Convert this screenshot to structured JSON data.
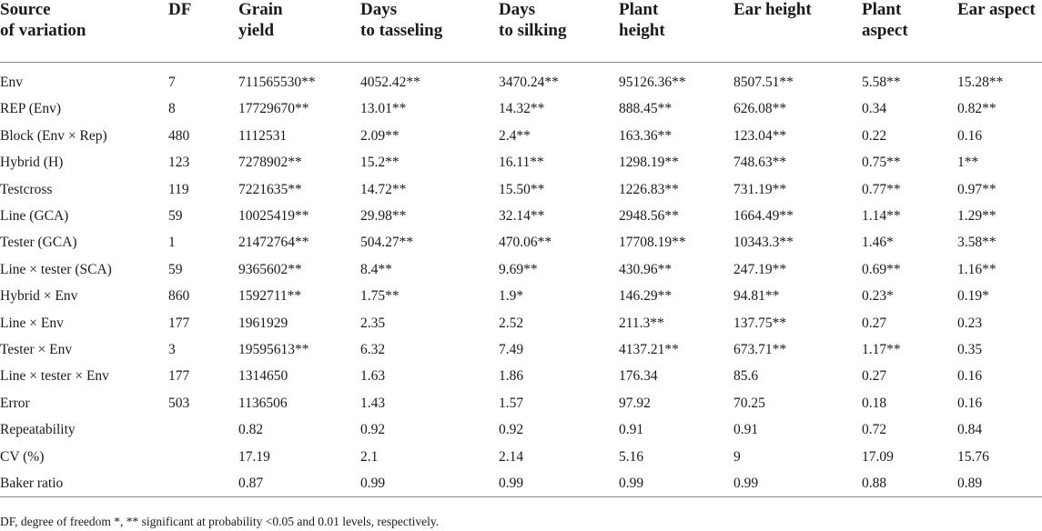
{
  "table": {
    "headers": [
      "Source\nof variation",
      "DF",
      "Grain\nyield",
      "Days\nto tasseling",
      "Days\nto silking",
      "Plant\nheight",
      "Ear height",
      "Plant\naspect",
      "Ear aspect"
    ],
    "rows": [
      [
        "Env",
        "7",
        "711565530**",
        "4052.42**",
        "3470.24**",
        "95126.36**",
        "8507.51**",
        "5.58**",
        "15.28**"
      ],
      [
        "REP (Env)",
        "8",
        "17729670**",
        "13.01**",
        "14.32**",
        "888.45**",
        "626.08**",
        "0.34",
        "0.82**"
      ],
      [
        "Block (Env × Rep)",
        "480",
        "1112531",
        "2.09**",
        "2.4**",
        "163.36**",
        "123.04**",
        "0.22",
        "0.16"
      ],
      [
        "Hybrid (H)",
        "123",
        "7278902**",
        "15.2**",
        "16.11**",
        "1298.19**",
        "748.63**",
        "0.75**",
        "1**"
      ],
      [
        "Testcross",
        "119",
        "7221635**",
        "14.72**",
        "15.50**",
        "1226.83**",
        "731.19**",
        "0.77**",
        "0.97**"
      ],
      [
        "Line (GCA)",
        "59",
        "10025419**",
        "29.98**",
        "32.14**",
        "2948.56**",
        "1664.49**",
        "1.14**",
        "1.29**"
      ],
      [
        "Tester (GCA)",
        "1",
        "21472764**",
        "504.27**",
        "470.06**",
        "17708.19**",
        "10343.3**",
        "1.46*",
        "3.58**"
      ],
      [
        "Line × tester (SCA)",
        "59",
        "9365602**",
        "8.4**",
        "9.69**",
        "430.96**",
        "247.19**",
        "0.69**",
        "1.16**"
      ],
      [
        "Hybrid × Env",
        "860",
        "1592711**",
        "1.75**",
        "1.9*",
        "146.29**",
        "94.81**",
        "0.23*",
        "0.19*"
      ],
      [
        "Line × Env",
        "177",
        "1961929",
        "2.35",
        "2.52",
        "211.3**",
        "137.75**",
        "0.27",
        "0.23"
      ],
      [
        "Tester × Env",
        "3",
        "19595613**",
        "6.32",
        "7.49",
        "4137.21**",
        "673.71**",
        "1.17**",
        "0.35"
      ],
      [
        "Line × tester × Env",
        "177",
        "1314650",
        "1.63",
        "1.86",
        "176.34",
        "85.6",
        "0.27",
        "0.16"
      ],
      [
        "Error",
        "503",
        "1136506",
        "1.43",
        "1.57",
        "97.92",
        "70.25",
        "0.18",
        "0.16"
      ],
      [
        "Repeatability",
        "",
        "0.82",
        "0.92",
        "0.92",
        "0.91",
        "0.91",
        "0.72",
        "0.84"
      ],
      [
        "CV (%)",
        "",
        "17.19",
        "2.1",
        "2.14",
        "5.16",
        "9",
        "17.09",
        "15.76"
      ],
      [
        "Baker ratio",
        "",
        "0.87",
        "0.99",
        "0.99",
        "0.99",
        "0.99",
        "0.88",
        "0.89"
      ]
    ]
  },
  "footnote": "DF, degree of freedom *, ** significant at probability <0.05 and 0.01 levels, respectively."
}
